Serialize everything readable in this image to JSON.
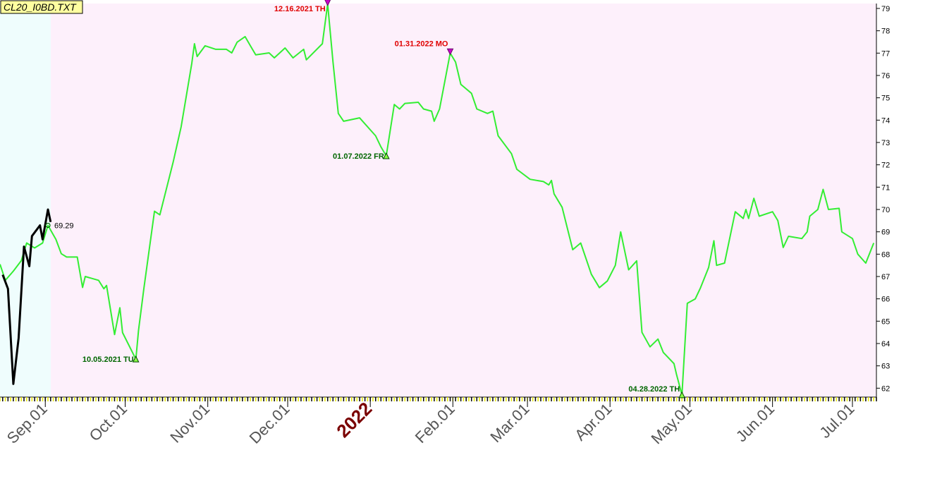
{
  "chart_data": {
    "type": "line",
    "title": "CL20_I0BD.TXT",
    "xlim": [
      "2021-08-15",
      "2022-07-10"
    ],
    "ylim": [
      61.6,
      79.22
    ],
    "yticks": [
      62,
      63,
      64,
      65,
      66,
      67,
      68,
      69,
      70,
      71,
      72,
      73,
      74,
      75,
      76,
      77,
      78,
      79
    ],
    "xticks": [
      {
        "value": "2021-09-01",
        "label": "Sep.01"
      },
      {
        "value": "2021-10-01",
        "label": "Oct.01"
      },
      {
        "value": "2021-11-01",
        "label": "Nov.01"
      },
      {
        "value": "2021-12-01",
        "label": "Dec.01"
      },
      {
        "value": "2022-01-01",
        "label": "2022",
        "color": "#7a0000"
      },
      {
        "value": "2022-02-01",
        "label": "Feb.01"
      },
      {
        "value": "2022-03-01",
        "label": "Mar.01"
      },
      {
        "value": "2022-04-01",
        "label": "Apr.01"
      },
      {
        "value": "2022-05-01",
        "label": "May.01"
      },
      {
        "value": "2022-06-01",
        "label": "Jun.01"
      },
      {
        "value": "2022-07-01",
        "label": "Jul.01"
      }
    ],
    "series": [
      {
        "color": "#33ee33",
        "x": [
          "2021-08-15",
          "2021-08-17",
          "2021-08-20",
          "2021-08-23",
          "2021-08-25",
          "2021-08-28",
          "2021-08-31",
          "2021-09-02",
          "2021-09-05",
          "2021-09-07",
          "2021-09-09",
          "2021-09-13",
          "2021-09-15",
          "2021-09-16",
          "2021-09-21",
          "2021-09-23",
          "2021-09-24",
          "2021-09-27",
          "2021-09-29",
          "2021-09-30",
          "2021-10-05",
          "2021-10-06",
          "2021-10-08",
          "2021-10-12",
          "2021-10-14",
          "2021-10-19",
          "2021-10-22",
          "2021-10-26",
          "2021-10-27",
          "2021-10-28",
          "2021-10-31",
          "2021-11-04",
          "2021-11-08",
          "2021-11-10",
          "2021-11-12",
          "2021-11-15",
          "2021-11-17",
          "2021-11-19",
          "2021-11-24",
          "2021-11-26",
          "2021-11-30",
          "2021-12-03",
          "2021-12-07",
          "2021-12-08",
          "2021-12-14",
          "2021-12-16",
          "2021-12-18",
          "2021-12-20",
          "2021-12-22",
          "2021-12-28",
          "2022-01-03",
          "2022-01-05",
          "2022-01-07",
          "2022-01-10",
          "2022-01-12",
          "2022-01-14",
          "2022-01-19",
          "2022-01-21",
          "2022-01-24",
          "2022-01-25",
          "2022-01-27",
          "2022-01-31",
          "2022-02-02",
          "2022-02-04",
          "2022-02-08",
          "2022-02-10",
          "2022-02-14",
          "2022-02-16",
          "2022-02-18",
          "2022-02-23",
          "2022-02-25",
          "2022-03-02",
          "2022-03-07",
          "2022-03-09",
          "2022-03-10",
          "2022-03-11",
          "2022-03-14",
          "2022-03-18",
          "2022-03-21",
          "2022-03-25",
          "2022-03-28",
          "2022-03-31",
          "2022-04-03",
          "2022-04-05",
          "2022-04-08",
          "2022-04-11",
          "2022-04-13",
          "2022-04-16",
          "2022-04-19",
          "2022-04-21",
          "2022-04-25",
          "2022-04-26",
          "2022-04-28",
          "2022-04-30",
          "2022-05-03",
          "2022-05-05",
          "2022-05-08",
          "2022-05-10",
          "2022-05-11",
          "2022-05-14",
          "2022-05-18",
          "2022-05-21",
          "2022-05-22",
          "2022-05-23",
          "2022-05-25",
          "2022-05-27",
          "2022-06-01",
          "2022-06-03",
          "2022-06-05",
          "2022-06-07",
          "2022-06-12",
          "2022-06-14",
          "2022-06-15",
          "2022-06-18",
          "2022-06-20",
          "2022-06-22",
          "2022-06-26",
          "2022-06-27",
          "2022-07-01",
          "2022-07-03",
          "2022-07-06",
          "2022-07-09"
        ],
        "values": [
          67.55,
          66.83,
          67.24,
          67.71,
          68.5,
          68.28,
          68.5,
          69.29,
          68.66,
          68.02,
          67.87,
          67.87,
          66.51,
          67.0,
          66.83,
          66.45,
          66.6,
          64.4,
          65.6,
          64.49,
          63.3,
          64.6,
          66.45,
          69.92,
          69.76,
          72.12,
          73.7,
          76.54,
          77.42,
          76.85,
          77.33,
          77.17,
          77.17,
          77.01,
          77.49,
          77.74,
          77.33,
          76.92,
          77.01,
          76.79,
          77.23,
          76.79,
          77.17,
          76.7,
          77.42,
          79.2,
          76.6,
          74.3,
          73.95,
          74.1,
          73.3,
          72.8,
          72.4,
          74.7,
          74.5,
          74.75,
          74.8,
          74.5,
          74.4,
          73.95,
          74.5,
          77.0,
          76.6,
          75.6,
          75.2,
          74.5,
          74.3,
          74.4,
          73.3,
          72.5,
          71.8,
          71.35,
          71.25,
          71.1,
          71.3,
          70.7,
          70.1,
          68.2,
          68.5,
          67.1,
          66.5,
          66.8,
          67.5,
          69.0,
          67.3,
          67.7,
          64.5,
          63.85,
          64.2,
          63.6,
          63.1,
          62.6,
          61.7,
          65.8,
          66.0,
          66.5,
          67.4,
          68.6,
          67.5,
          67.6,
          69.9,
          69.6,
          70.0,
          69.6,
          70.5,
          69.7,
          69.9,
          69.5,
          68.3,
          68.8,
          68.7,
          69.0,
          69.7,
          70.0,
          70.9,
          70.0,
          70.05,
          69.0,
          68.7,
          68.0,
          67.6,
          68.5
        ]
      },
      {
        "color": "#000000",
        "x": [
          "2021-08-16",
          "2021-08-18",
          "2021-08-20",
          "2021-08-22",
          "2021-08-24",
          "2021-08-26",
          "2021-08-27",
          "2021-08-30",
          "2021-08-31",
          "2021-09-02",
          "2021-09-03"
        ],
        "values": [
          67.08,
          66.45,
          62.19,
          64.24,
          68.34,
          67.46,
          68.81,
          69.29,
          68.66,
          70.0,
          69.44
        ]
      }
    ],
    "annotations": [
      {
        "x": "2021-12-16",
        "y": 79.2,
        "text": "12.16.2021 TH",
        "kind": "high",
        "color": "#e00000"
      },
      {
        "x": "2022-01-31",
        "y": 77.0,
        "text": "01.31.2022 MO",
        "kind": "high",
        "color": "#e00000"
      },
      {
        "x": "2021-10-05",
        "y": 63.3,
        "text": "10.05.2021 TU",
        "kind": "low",
        "color": "#006600"
      },
      {
        "x": "2022-01-07",
        "y": 72.4,
        "text": "01.07.2022 FR",
        "kind": "low",
        "color": "#006600"
      },
      {
        "x": "2022-04-28",
        "y": 61.7,
        "text": "04.28.2022 TH",
        "kind": "low",
        "color": "#006600"
      }
    ]
  }
}
